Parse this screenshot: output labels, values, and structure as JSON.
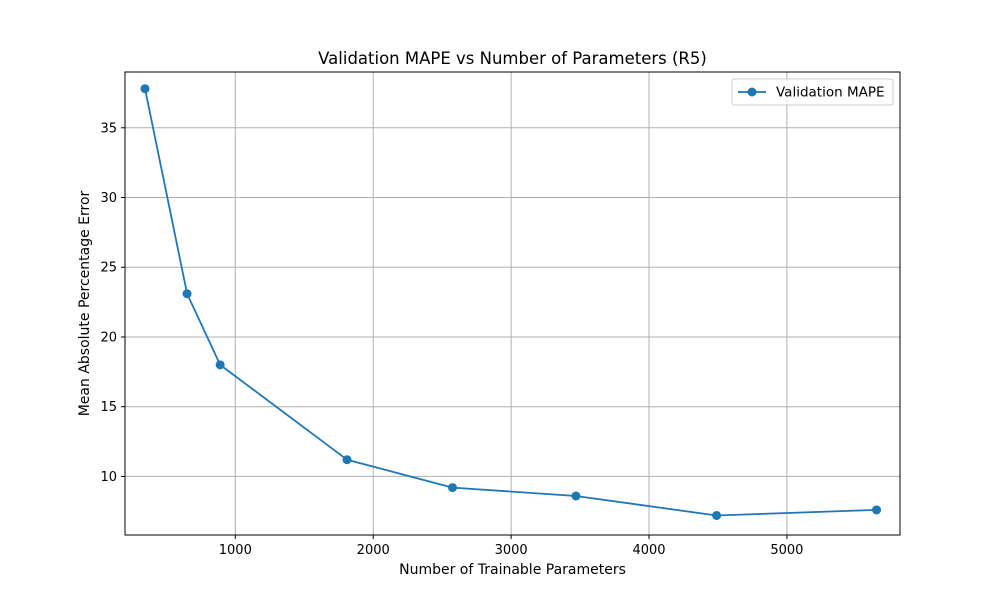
{
  "chart_data": {
    "type": "line",
    "title": "Validation MAPE vs Number of Parameters (R5)",
    "xlabel": "Number of Trainable Parameters",
    "ylabel": "Mean Absolute Percentage Error",
    "xlim": [
      200,
      5820
    ],
    "ylim": [
      5.8,
      39.0
    ],
    "xticks": [
      1000,
      2000,
      3000,
      4000,
      5000
    ],
    "yticks": [
      10,
      15,
      20,
      25,
      30,
      35
    ],
    "grid": true,
    "legend_position": "top-right",
    "series": [
      {
        "name": "Validation MAPE",
        "color": "#1f77b4",
        "marker": "circle",
        "x": [
          345,
          650,
          890,
          1810,
          2575,
          3470,
          4490,
          5650
        ],
        "y": [
          37.8,
          23.1,
          18.0,
          11.2,
          9.2,
          8.6,
          7.2,
          7.6
        ]
      }
    ]
  }
}
